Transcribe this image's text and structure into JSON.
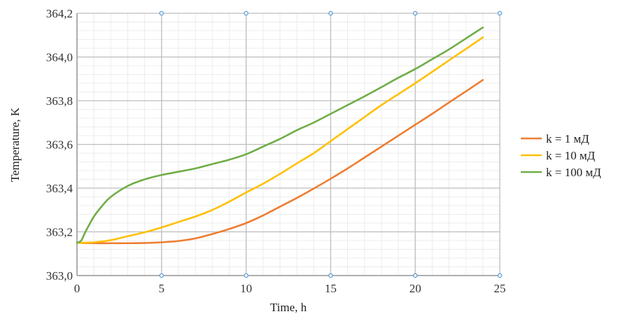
{
  "chart_data": {
    "type": "line",
    "xlabel": "Time, h",
    "ylabel": "Temperature, K",
    "xlim": [
      0,
      25
    ],
    "ylim": [
      363.0,
      364.2
    ],
    "x_ticks": [
      0,
      5,
      10,
      15,
      20,
      25
    ],
    "x_tick_labels": [
      "0",
      "5",
      "10",
      "15",
      "20",
      "25"
    ],
    "y_ticks": [
      363.0,
      363.2,
      363.4,
      363.6,
      363.8,
      364.0,
      364.2
    ],
    "y_tick_labels": [
      "363,0",
      "363,2",
      "363,4",
      "363,6",
      "363,8",
      "364,0",
      "364,2"
    ],
    "grid": true,
    "legend_position": "right",
    "series": [
      {
        "name": "k = 1 мД",
        "color": "#ED7D31",
        "x": [
          0,
          1,
          2,
          3,
          4,
          5,
          6,
          7,
          8,
          9,
          10,
          11,
          12,
          13,
          14,
          15,
          16,
          17,
          18,
          19,
          20,
          21,
          22,
          23,
          24
        ],
        "y": [
          363.15,
          363.148,
          363.148,
          363.148,
          363.149,
          363.152,
          363.158,
          363.17,
          363.19,
          363.213,
          363.24,
          363.275,
          363.315,
          363.355,
          363.398,
          363.443,
          363.49,
          363.54,
          363.59,
          363.64,
          363.69,
          363.74,
          363.792,
          363.843,
          363.895
        ]
      },
      {
        "name": "k = 10 мД",
        "color": "#FFC000",
        "x": [
          0,
          1,
          2,
          3,
          4,
          5,
          6,
          7,
          8,
          9,
          10,
          11,
          12,
          13,
          14,
          15,
          16,
          17,
          18,
          19,
          20,
          21,
          22,
          23,
          24
        ],
        "y": [
          363.15,
          363.152,
          363.162,
          363.18,
          363.198,
          363.22,
          363.245,
          363.27,
          363.3,
          363.338,
          363.38,
          363.42,
          363.465,
          363.513,
          363.56,
          363.615,
          363.67,
          363.725,
          363.78,
          363.83,
          363.88,
          363.932,
          363.985,
          364.037,
          364.09
        ]
      },
      {
        "name": "k = 100 мД",
        "color": "#70AD47",
        "x": [
          0,
          0.25,
          0.5,
          1,
          1.5,
          2,
          3,
          4,
          5,
          6,
          7,
          8,
          9,
          10,
          11,
          12,
          13,
          14,
          15,
          16,
          17,
          18,
          19,
          20,
          21,
          22,
          23,
          24
        ],
        "y": [
          363.15,
          363.16,
          363.2,
          363.27,
          363.32,
          363.36,
          363.41,
          363.44,
          363.46,
          363.475,
          363.49,
          363.51,
          363.53,
          363.555,
          363.59,
          363.625,
          363.665,
          363.7,
          363.74,
          363.78,
          363.82,
          363.862,
          363.905,
          363.945,
          363.99,
          364.035,
          364.085,
          364.135
        ]
      }
    ]
  }
}
